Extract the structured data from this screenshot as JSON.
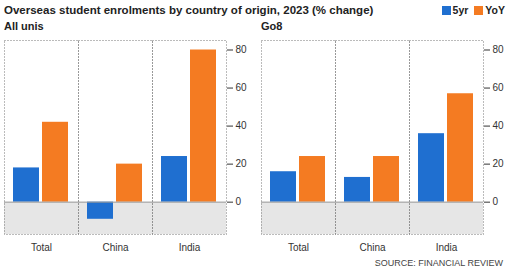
{
  "title": "Overseas student enrolments by country of origin, 2023 (% change)",
  "source": "SOURCE: FINANCIAL REVIEW",
  "chart_data": [
    {
      "type": "bar",
      "title": "All unis",
      "categories": [
        "Total",
        "China",
        "India"
      ],
      "series": [
        {
          "name": "5yr",
          "color": "#1f6fd0",
          "values": [
            18,
            -9,
            24
          ]
        },
        {
          "name": "YoY",
          "color": "#f47b22",
          "values": [
            42,
            20,
            80
          ]
        }
      ],
      "ylim": [
        -17,
        85
      ],
      "yticks": [
        0,
        20,
        40,
        60,
        80
      ],
      "grid": false,
      "legend": "top"
    },
    {
      "type": "bar",
      "title": "Go8",
      "categories": [
        "Total",
        "China",
        "India"
      ],
      "series": [
        {
          "name": "5yr",
          "color": "#1f6fd0",
          "values": [
            16,
            13,
            36
          ]
        },
        {
          "name": "YoY",
          "color": "#f47b22",
          "values": [
            24,
            24,
            57
          ]
        }
      ],
      "ylim": [
        -17,
        85
      ],
      "yticks": [
        0,
        20,
        40,
        60,
        80
      ],
      "grid": false
    }
  ]
}
